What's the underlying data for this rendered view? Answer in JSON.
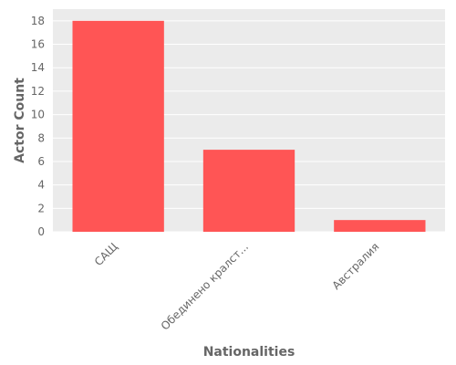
{
  "chart_data": {
    "type": "bar",
    "categories": [
      "САЩ",
      "Обединено кралст...",
      "Австралия"
    ],
    "values": [
      18,
      7,
      1
    ],
    "xlabel": "Nationalities",
    "ylabel": "Actor Count",
    "ylim": [
      0,
      19
    ],
    "yticks": [
      0,
      2,
      4,
      6,
      8,
      10,
      12,
      14,
      16,
      18
    ],
    "grid": true,
    "legend": "none",
    "colors": {
      "bar": "#ff5555",
      "plot_background": "#ebebeb",
      "grid": "#ffffff",
      "text": "#666666"
    }
  }
}
